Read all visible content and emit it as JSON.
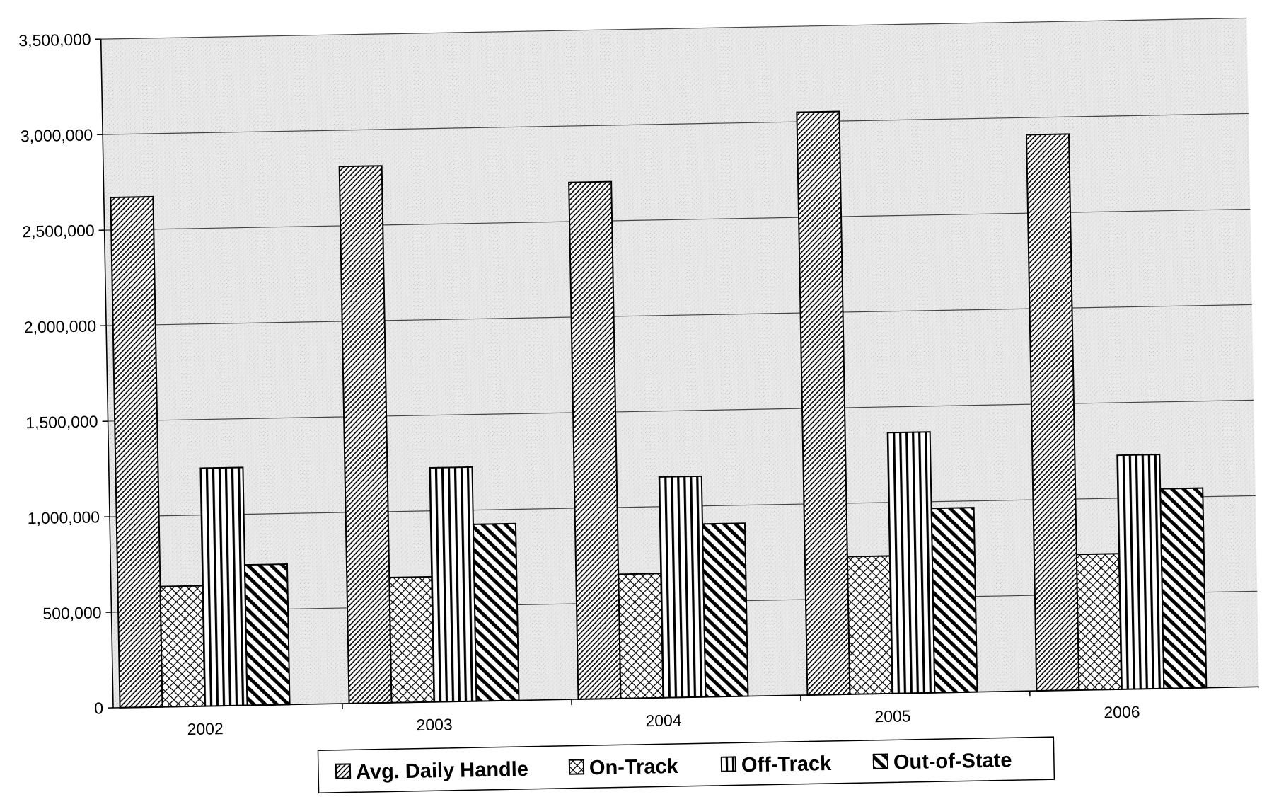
{
  "chart_data": {
    "type": "bar",
    "title": "",
    "xlabel": "",
    "ylabel": "",
    "categories": [
      "2002",
      "2003",
      "2004",
      "2005",
      "2006"
    ],
    "series": [
      {
        "name": "Avg. Daily Handle",
        "pattern": "diagonal-up",
        "values": [
          2670000,
          2810000,
          2705000,
          3050000,
          2910000
        ]
      },
      {
        "name": "On-Track",
        "pattern": "crosshatch",
        "values": [
          630000,
          655000,
          650000,
          720000,
          710000
        ]
      },
      {
        "name": "Off-Track",
        "pattern": "vertical",
        "values": [
          1245000,
          1225000,
          1155000,
          1365000,
          1225000
        ]
      },
      {
        "name": "Out-of-State",
        "pattern": "diagonal-down",
        "values": [
          735000,
          925000,
          905000,
          965000,
          1045000
        ]
      }
    ],
    "ylim": [
      0,
      3500000
    ],
    "yticks": [
      0,
      500000,
      1000000,
      1500000,
      2000000,
      2500000,
      3000000,
      3500000
    ],
    "ytick_labels": [
      "0",
      "500,000",
      "1,000,000",
      "1,500,000",
      "2,000,000",
      "2,500,000",
      "3,000,000",
      "3,500,000"
    ],
    "grid": true,
    "legend_position": "bottom",
    "colors": {
      "bar_fill": "#ffffff",
      "bar_stroke": "#000000",
      "plot_background": "#e6e6e6",
      "gridline": "#444444"
    }
  }
}
